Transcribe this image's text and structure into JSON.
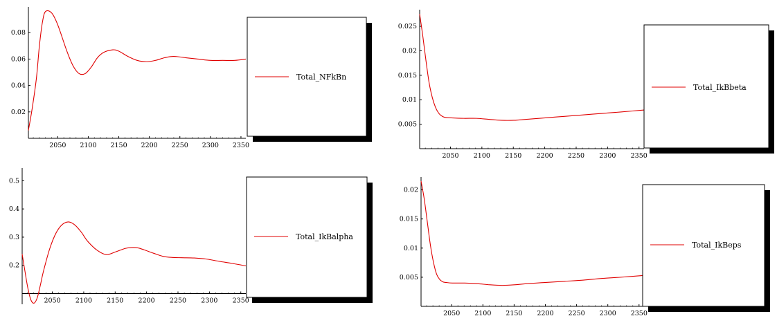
{
  "colors": {
    "series": "#e00000",
    "axis": "#000000",
    "legend_border": "#000000",
    "legend_shadow": "#000000",
    "background": "#ffffff"
  },
  "chart_data": [
    {
      "type": "line",
      "legend_placement": "right",
      "grid": false,
      "xlim": [
        2002,
        2358
      ],
      "ylim": [
        0.0,
        0.0995
      ],
      "xticks": [
        2050,
        2100,
        2150,
        2200,
        2250,
        2300,
        2350
      ],
      "xtick_labels": [
        "2050",
        "2100",
        "2150",
        "2200",
        "2250",
        "2300",
        "2350"
      ],
      "yticks": [
        0.02,
        0.04,
        0.06,
        0.08
      ],
      "ytick_labels": [
        "0.02",
        "0.04",
        "0.06",
        "0.08"
      ],
      "x_axis_at_y": 0.0,
      "series": [
        {
          "name": "Total_NFkBn",
          "x": [
            2002,
            2008,
            2015,
            2020,
            2025,
            2030,
            2040,
            2050,
            2065,
            2075,
            2085,
            2095,
            2105,
            2115,
            2125,
            2140,
            2150,
            2165,
            2180,
            2195,
            2210,
            2225,
            2240,
            2260,
            2280,
            2300,
            2320,
            2340,
            2358
          ],
          "y": [
            0.006,
            0.022,
            0.045,
            0.07,
            0.088,
            0.096,
            0.095,
            0.086,
            0.066,
            0.055,
            0.049,
            0.049,
            0.054,
            0.061,
            0.065,
            0.067,
            0.066,
            0.062,
            0.059,
            0.058,
            0.059,
            0.061,
            0.062,
            0.061,
            0.06,
            0.059,
            0.059,
            0.059,
            0.06
          ]
        }
      ]
    },
    {
      "type": "line",
      "legend_placement": "right",
      "grid": false,
      "xlim": [
        2001,
        2358
      ],
      "ylim": [
        0.0,
        0.0284
      ],
      "xticks": [
        2050,
        2100,
        2150,
        2200,
        2250,
        2300,
        2350
      ],
      "xtick_labels": [
        "2050",
        "2100",
        "2150",
        "2200",
        "2250",
        "2300",
        "2350"
      ],
      "yticks": [
        0.005,
        0.01,
        0.015,
        0.02,
        0.025
      ],
      "ytick_labels": [
        "0.005",
        "0.01",
        "0.015",
        "0.02",
        "0.025"
      ],
      "x_axis_at_y": 0.0,
      "series": [
        {
          "name": "Total_IkBbeta",
          "x": [
            2001,
            2006,
            2011,
            2016,
            2021,
            2026,
            2031,
            2036,
            2041,
            2051,
            2071,
            2091,
            2111,
            2131,
            2151,
            2171,
            2201,
            2231,
            2261,
            2291,
            2321,
            2358
          ],
          "y": [
            0.0275,
            0.023,
            0.018,
            0.0135,
            0.0105,
            0.0085,
            0.0073,
            0.0067,
            0.0064,
            0.0063,
            0.0062,
            0.0062,
            0.006,
            0.0058,
            0.0058,
            0.006,
            0.0063,
            0.0066,
            0.0069,
            0.0072,
            0.0075,
            0.0079
          ]
        }
      ]
    },
    {
      "type": "line",
      "legend_placement": "right",
      "grid": false,
      "xlim": [
        2002,
        2358
      ],
      "ylim": [
        0.062,
        0.545
      ],
      "xticks": [
        2050,
        2100,
        2150,
        2200,
        2250,
        2300,
        2350
      ],
      "xtick_labels": [
        "2050",
        "2100",
        "2150",
        "2200",
        "2250",
        "2300",
        "2350"
      ],
      "yticks": [
        0.2,
        0.3,
        0.4,
        0.5
      ],
      "ytick_labels": [
        "0.2",
        "0.3",
        "0.4",
        "0.5"
      ],
      "x_axis_at_y": 0.1,
      "series": [
        {
          "name": "Total_IkBalpha",
          "x": [
            2002,
            2006,
            2011,
            2016,
            2021,
            2026,
            2031,
            2036,
            2046,
            2056,
            2066,
            2076,
            2086,
            2096,
            2106,
            2121,
            2136,
            2151,
            2166,
            2176,
            2186,
            2196,
            2211,
            2226,
            2241,
            2256,
            2276,
            2296,
            2316,
            2336,
            2358
          ],
          "y": [
            0.24,
            0.185,
            0.12,
            0.077,
            0.066,
            0.085,
            0.13,
            0.18,
            0.26,
            0.315,
            0.345,
            0.354,
            0.343,
            0.318,
            0.286,
            0.254,
            0.238,
            0.248,
            0.26,
            0.263,
            0.262,
            0.255,
            0.243,
            0.232,
            0.228,
            0.227,
            0.226,
            0.222,
            0.214,
            0.207,
            0.198
          ]
        }
      ]
    },
    {
      "type": "line",
      "legend_placement": "right",
      "grid": false,
      "xlim": [
        2001,
        2358
      ],
      "ylim": [
        0.0,
        0.0222
      ],
      "xticks": [
        2050,
        2100,
        2150,
        2200,
        2250,
        2300,
        2350
      ],
      "xtick_labels": [
        "2050",
        "2100",
        "2150",
        "2200",
        "2250",
        "2300",
        "2350"
      ],
      "yticks": [
        0.005,
        0.01,
        0.015,
        0.02
      ],
      "ytick_labels": [
        "0.005",
        "0.01",
        "0.015",
        "0.02"
      ],
      "x_axis_at_y": 0.0,
      "series": [
        {
          "name": "Total_IkBeps",
          "x": [
            2001,
            2006,
            2011,
            2016,
            2021,
            2026,
            2031,
            2036,
            2041,
            2051,
            2071,
            2091,
            2111,
            2131,
            2151,
            2171,
            2201,
            2231,
            2261,
            2291,
            2321,
            2358
          ],
          "y": [
            0.0215,
            0.0185,
            0.0145,
            0.0105,
            0.0075,
            0.0055,
            0.0046,
            0.0042,
            0.0041,
            0.004,
            0.004,
            0.0039,
            0.0037,
            0.0036,
            0.0037,
            0.0039,
            0.0041,
            0.0043,
            0.0045,
            0.0048,
            0.005,
            0.0053
          ]
        }
      ]
    }
  ]
}
